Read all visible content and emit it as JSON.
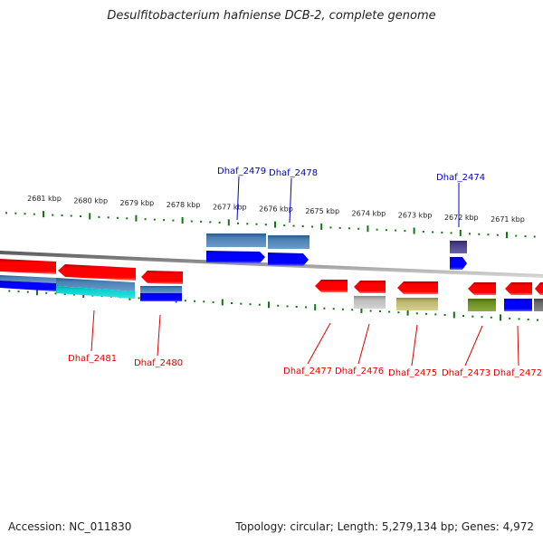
{
  "title": "Desulfitobacterium hafniense DCB-2, complete genome",
  "footer": {
    "accession": "Accession: NC_011830",
    "summary": "Topology: circular; Length: 5,279,134 bp; Genes: 4,972"
  },
  "colors": {
    "forward_label": "#0000cc",
    "reverse_label": "#dd0000",
    "tick": "#117711",
    "backbone": "#888888",
    "cds_red": "#ff0000",
    "cds_blue": "#0000ee"
  },
  "kbp_labels": [
    "2681 kbp",
    "2680 kbp",
    "2679 kbp",
    "2678 kbp",
    "2677 kbp",
    "2676 kbp",
    "2675 kbp",
    "2674 kbp",
    "2673 kbp",
    "2672 kbp",
    "2671 kbp"
  ],
  "forward_genes": [
    {
      "label": "Dhaf_2479"
    },
    {
      "label": "Dhaf_2478"
    },
    {
      "label": "Dhaf_2474"
    }
  ],
  "reverse_genes": [
    {
      "label": "Dhaf_2481"
    },
    {
      "label": "Dhaf_2480"
    },
    {
      "label": "Dhaf_2477"
    },
    {
      "label": "Dhaf_2476"
    },
    {
      "label": "Dhaf_2475"
    },
    {
      "label": "Dhaf_2473"
    },
    {
      "label": "Dhaf_2472"
    }
  ]
}
